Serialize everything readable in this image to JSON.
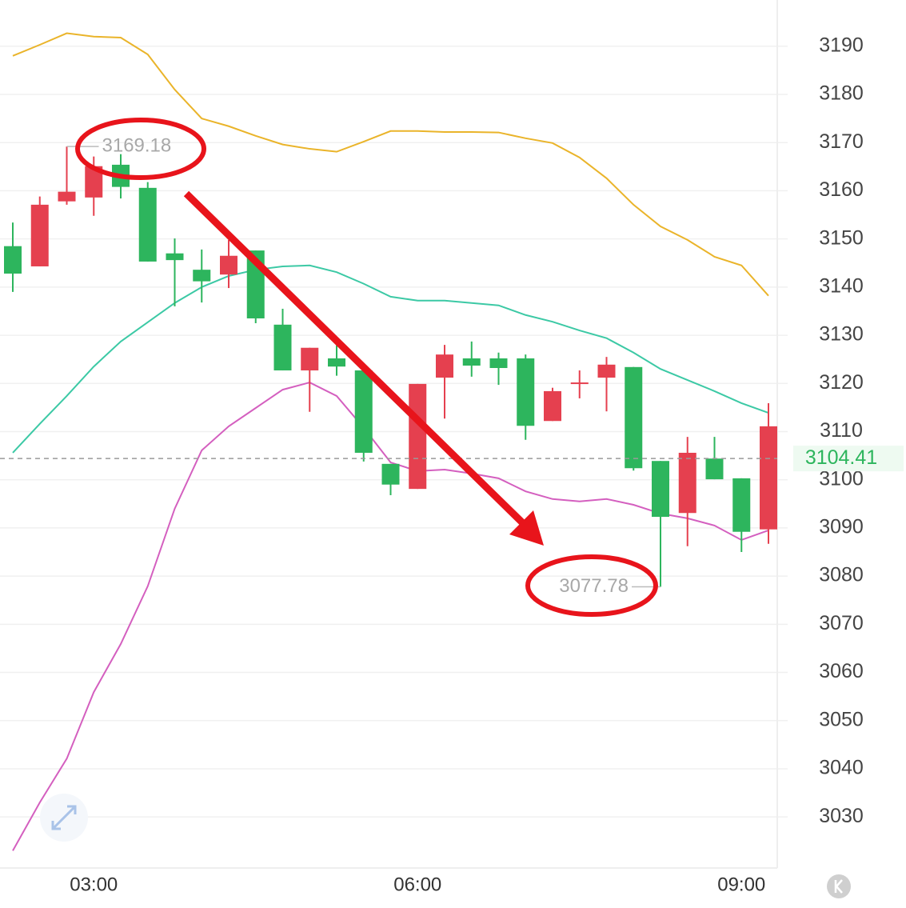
{
  "chart_data": {
    "type": "candlestick",
    "categories": [
      null,
      null,
      null,
      "03:00",
      null,
      null,
      null,
      null,
      null,
      null,
      null,
      null,
      null,
      null,
      null,
      "06:00",
      null,
      null,
      null,
      null,
      null,
      null,
      null,
      null,
      null,
      null,
      null,
      "09:00",
      null
    ],
    "open": [
      3148.5,
      3144.3,
      3157.8,
      3158.6,
      3165.4,
      3160.6,
      3147.0,
      3143.6,
      3142.6,
      3147.6,
      3132.2,
      3122.7,
      3125.2,
      3122.7,
      3103.3,
      3098.1,
      3121.2,
      3125.2,
      3125.2,
      3125.2,
      3112.2,
      3119.9,
      3121.2,
      3123.4,
      3103.9,
      3093.1,
      3104.4,
      3100.3,
      3089.7
    ],
    "high": [
      3153.4,
      3158.8,
      3169.18,
      3167.1,
      3167.6,
      3161.8,
      3150.1,
      3147.8,
      3149.8,
      3147.6,
      3135.5,
      3127.4,
      3127.9,
      3122.7,
      3103.3,
      3119.9,
      3128.0,
      3128.7,
      3126.4,
      3126.0,
      3119.1,
      3122.7,
      3125.5,
      3123.4,
      3103.9,
      3108.9,
      3108.9,
      3100.3,
      3115.9
    ],
    "low": [
      3139.0,
      3144.3,
      3157.1,
      3154.8,
      3158.4,
      3145.3,
      3136.0,
      3136.8,
      3139.8,
      3132.5,
      3122.7,
      3114.1,
      3121.6,
      3103.8,
      3096.8,
      3098.1,
      3112.7,
      3121.4,
      3119.7,
      3108.3,
      3112.2,
      3116.9,
      3114.2,
      3101.9,
      3077.78,
      3086.2,
      3100.1,
      3085.0,
      3086.7
    ],
    "close": [
      3142.8,
      3157.1,
      3159.8,
      3165.1,
      3160.8,
      3145.3,
      3145.6,
      3141.2,
      3146.5,
      3133.5,
      3122.7,
      3127.4,
      3123.5,
      3105.6,
      3099.0,
      3119.9,
      3126.0,
      3123.7,
      3123.2,
      3111.2,
      3118.4,
      3120.2,
      3123.9,
      3102.4,
      3092.3,
      3105.6,
      3100.1,
      3089.2,
      3111.1
    ],
    "up_color": "#e5404f",
    "down_color": "#2db55d",
    "lines": [
      {
        "color": "#eab42a",
        "values": [
          3188.0,
          3190.3,
          3192.7,
          3192.0,
          3191.8,
          3188.3,
          3181.0,
          3175.0,
          3173.4,
          3171.4,
          3169.6,
          3168.7,
          3168.1,
          3170.2,
          3172.4,
          3172.4,
          3172.2,
          3172.2,
          3172.1,
          3170.9,
          3169.9,
          3166.9,
          3162.6,
          3157.1,
          3152.6,
          3149.8,
          3146.3,
          3144.5,
          3138.2
        ]
      },
      {
        "color": "#3cc9a5",
        "values": [
          3105.6,
          3111.6,
          3117.4,
          3123.5,
          3128.7,
          3132.7,
          3136.7,
          3140.0,
          3142.3,
          3143.6,
          3144.3,
          3144.5,
          3143.1,
          3140.7,
          3138.0,
          3137.2,
          3137.2,
          3136.7,
          3136.2,
          3134.2,
          3132.8,
          3131.0,
          3129.4,
          3126.4,
          3123.0,
          3120.7,
          3118.4,
          3115.9,
          3113.9
        ]
      },
      {
        "color": "#d45fbf",
        "values": [
          3023.0,
          3033.0,
          3042.1,
          3055.9,
          3065.9,
          3077.9,
          3094.0,
          3106.1,
          3111.1,
          3114.9,
          3118.7,
          3120.2,
          3117.4,
          3110.8,
          3103.6,
          3101.8,
          3102.1,
          3101.3,
          3100.3,
          3097.6,
          3096.0,
          3095.5,
          3096.0,
          3094.8,
          3093.0,
          3092.0,
          3090.5,
          3087.5,
          3089.5
        ]
      }
    ],
    "annotations": [
      3169.18,
      3077.78
    ],
    "last_price": 3104.41,
    "ylim": [
      3019.4,
      3199.6
    ],
    "yticks": [
      3030,
      3040,
      3050,
      3060,
      3070,
      3080,
      3090,
      3100,
      3110,
      3120,
      3130,
      3140,
      3150,
      3160,
      3170,
      3180,
      3190
    ],
    "grid": true
  }
}
